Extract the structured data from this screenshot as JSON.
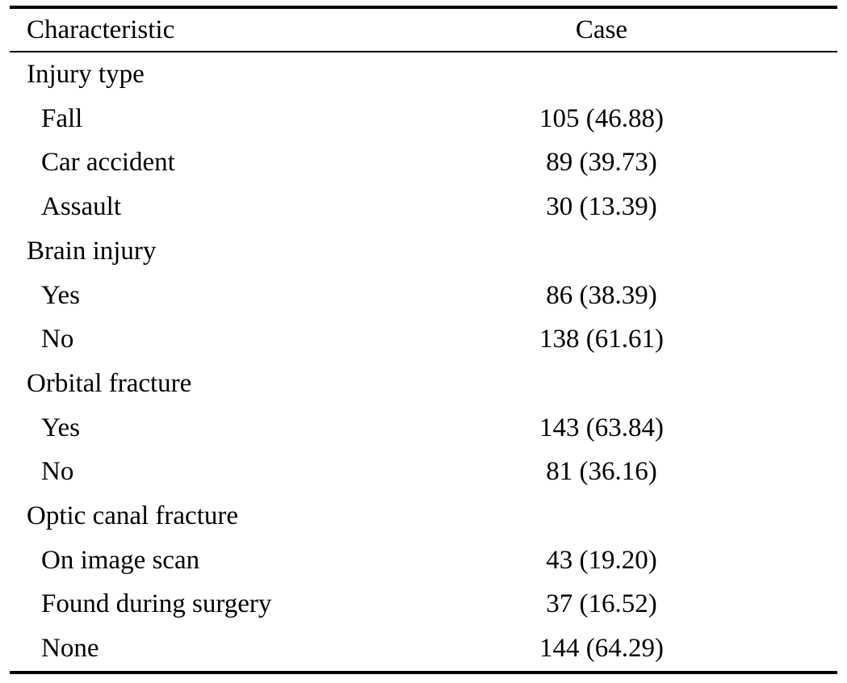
{
  "table": {
    "headers": {
      "characteristic": "Characteristic",
      "case": "Case"
    },
    "rows": [
      {
        "label": "Injury type",
        "value": "",
        "indent": false
      },
      {
        "label": "Fall",
        "value": "105 (46.88)",
        "indent": true
      },
      {
        "label": "Car accident",
        "value": "89 (39.73)",
        "indent": true
      },
      {
        "label": "Assault",
        "value": "30 (13.39)",
        "indent": true
      },
      {
        "label": "Brain injury",
        "value": "",
        "indent": false
      },
      {
        "label": "Yes",
        "value": "86 (38.39)",
        "indent": true
      },
      {
        "label": "No",
        "value": "138 (61.61)",
        "indent": true
      },
      {
        "label": "Orbital fracture",
        "value": "",
        "indent": false
      },
      {
        "label": "Yes",
        "value": "143 (63.84)",
        "indent": true
      },
      {
        "label": "No",
        "value": "81 (36.16)",
        "indent": true
      },
      {
        "label": "Optic canal fracture",
        "value": "",
        "indent": false
      },
      {
        "label": "On image scan",
        "value": "43 (19.20)",
        "indent": true
      },
      {
        "label": "Found during surgery",
        "value": "37 (16.52)",
        "indent": true
      },
      {
        "label": "None",
        "value": "144 (64.29)",
        "indent": true
      }
    ]
  }
}
